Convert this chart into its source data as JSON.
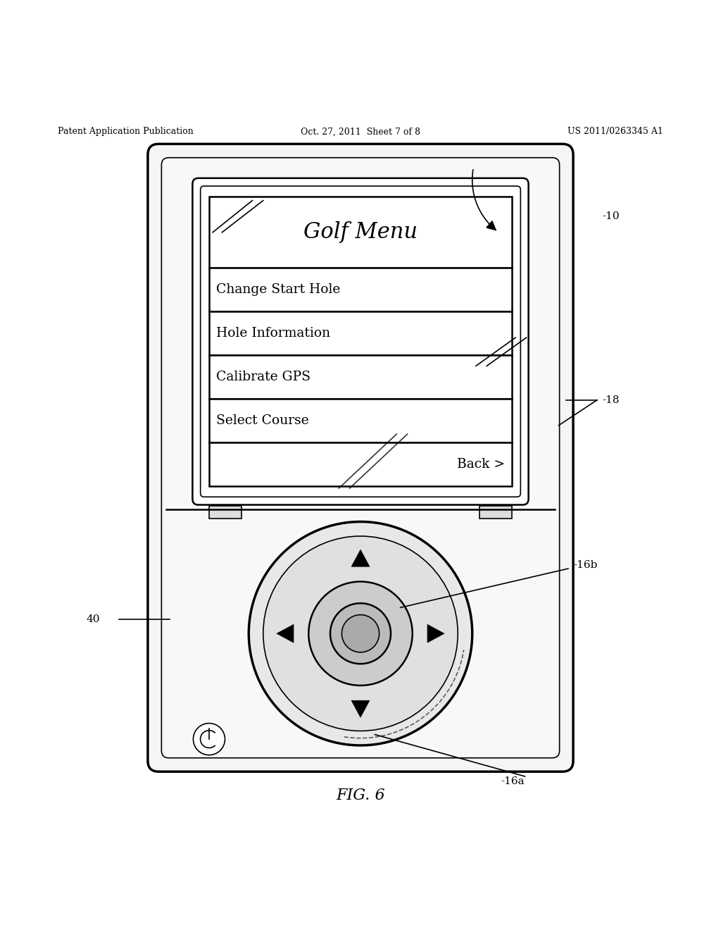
{
  "bg_color": "#ffffff",
  "line_color": "#000000",
  "header_left": "Patent Application Publication",
  "header_center": "Oct. 27, 2011  Sheet 7 of 8",
  "header_right": "US 2011/0263345 A1",
  "figure_label": "FIG. 6",
  "label_10": "-10",
  "label_18": "-18",
  "label_40": "40",
  "label_16a": "-16a",
  "label_16b": "-16b",
  "menu_title": "Golf Menu",
  "menu_items": [
    "Change Start Hole",
    "Hole Information",
    "Calibrate GPS",
    "Select Course",
    "Back >"
  ]
}
